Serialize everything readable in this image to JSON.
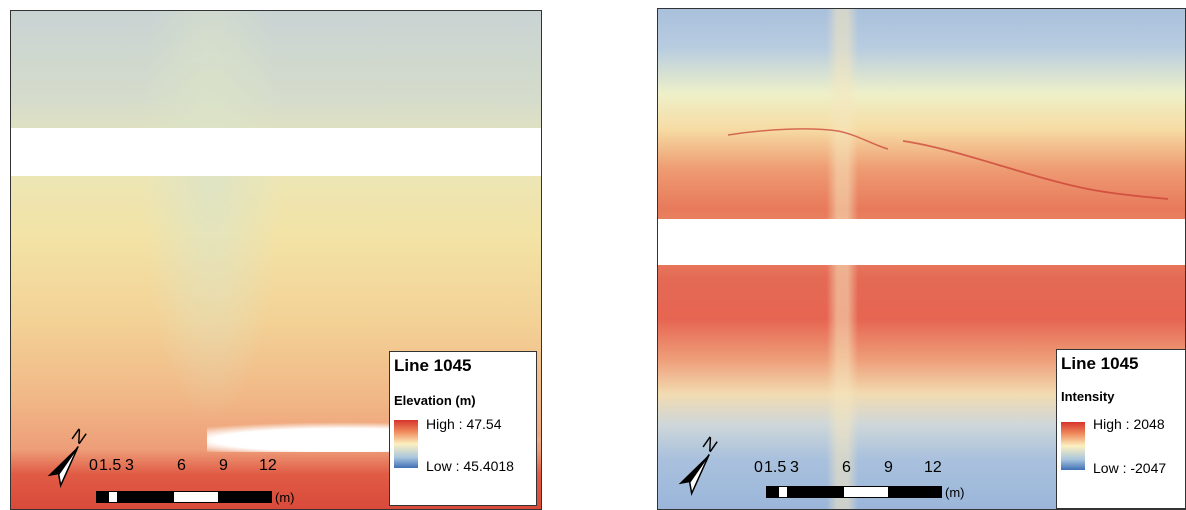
{
  "panels": [
    {
      "legend": {
        "title": "Line 1045",
        "field": "Elevation (m)",
        "high_label": "High : 47.54",
        "low_label": "Low : 45.4018"
      },
      "scale_bar": {
        "ticks": [
          "0",
          "1.5",
          "3",
          "6",
          "9",
          "12"
        ],
        "unit": "(m)"
      },
      "north_label": "N"
    },
    {
      "legend": {
        "title": "Line 1045",
        "field": "Intensity",
        "high_label": "High : 2048",
        "low_label": "Low : -2047"
      },
      "scale_bar": {
        "ticks": [
          "0",
          "1.5",
          "3",
          "6",
          "9",
          "12"
        ],
        "unit": "(m)"
      },
      "north_label": "N"
    }
  ],
  "colors": {
    "ramp_high": "#d6342b",
    "ramp_mid": "#fbf0c0",
    "ramp_low": "#3f6fb5"
  },
  "icons": [
    "north-arrow-icon"
  ]
}
